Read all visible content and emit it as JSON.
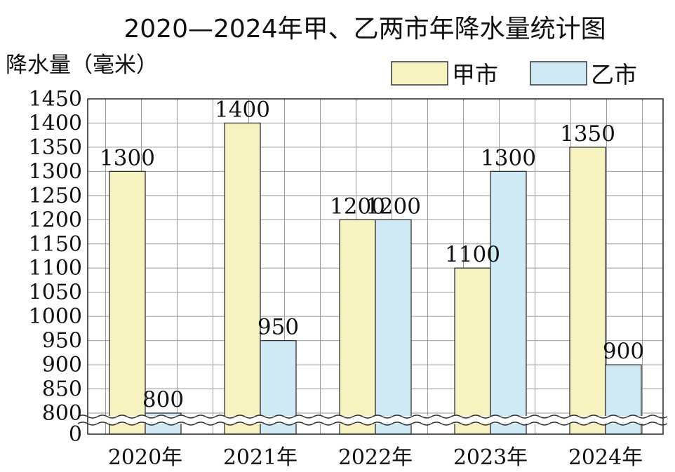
{
  "chart_data": {
    "type": "bar",
    "title": "2020—2024年甲、乙两市年降水量统计图",
    "ylabel": "降水量（毫米）",
    "categories": [
      "2020年",
      "2021年",
      "2022年",
      "2023年",
      "2024年"
    ],
    "series": [
      {
        "name": "甲市",
        "values": [
          1300,
          1400,
          1200,
          1100,
          1350
        ],
        "color": "#f7f3c0"
      },
      {
        "name": "乙市",
        "values": [
          800,
          950,
          1200,
          1300,
          900
        ],
        "color": "#cfe9f5"
      }
    ],
    "data_labels": [
      [
        "1300",
        "1400",
        "1200",
        "1100",
        "1350"
      ],
      [
        "800",
        "950",
        "1200",
        "1300",
        "900"
      ]
    ],
    "yticks": [
      0,
      800,
      850,
      900,
      950,
      1000,
      1050,
      1100,
      1150,
      1200,
      1250,
      1300,
      1350,
      1400,
      1450
    ],
    "ylim": [
      800,
      1450
    ],
    "axis_break": "0-800",
    "grid": true,
    "legend_position": "top-right"
  }
}
